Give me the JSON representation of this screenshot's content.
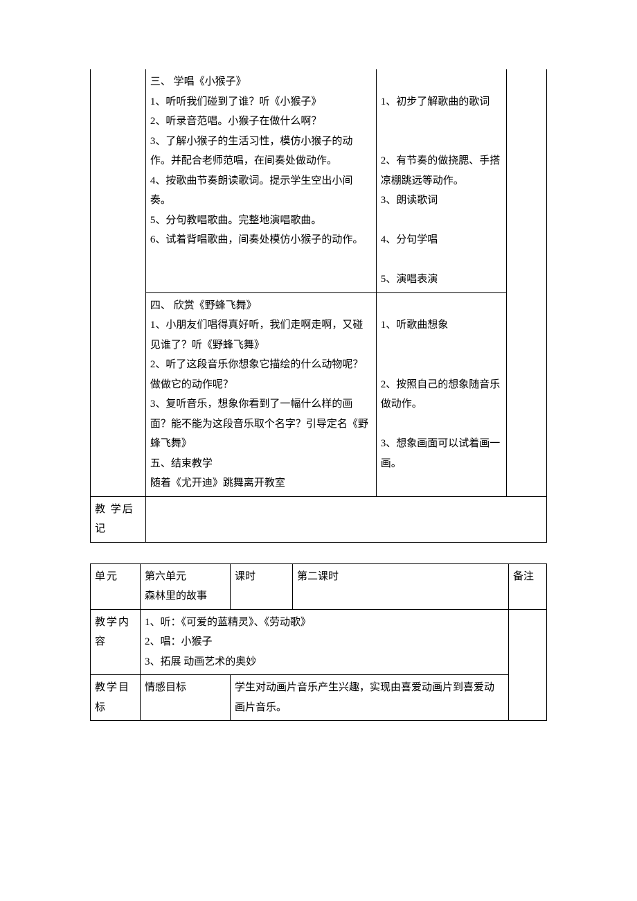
{
  "table1": {
    "row1": {
      "teacher": "三、   学唱《小猴子》\n1、听听我们碰到了谁？听《小猴子》\n2、听录音范唱。小猴子在做什么啊？\n3、了解小猴子的生活习性，模仿小猴子的动作。并配合老师范唱，在间奏处做动作。\n4、按歌曲节奏朗读歌词。提示学生空出小间奏。\n5、分句教唱歌曲。完整地演唱歌曲。\n6、试着背唱歌曲，间奏处模仿小猴子的动作。",
      "student": "\n1、初步了解歌曲的歌词\n\n\n2、有节奏的做挠腮、手搭凉棚跳远等动作。\n3、朗读歌词\n\n4、分句学唱\n\n5、演唱表演"
    },
    "row2": {
      "teacher": "四、   欣赏《野蜂飞舞》\n1、小朋友们唱得真好听，我们走啊走啊，又碰见谁了？听《野蜂飞舞》\n2、听了这段音乐你想象它描绘的什么动物呢？做做它的动作呢？\n3、复听音乐，想象你看到了一幅什么样的画面？能不能为这段音乐取个名字？引导定名《野蜂飞舞》\n五、结束教学\n随着《尤开迪》跳舞离开教室",
      "student": "\n1、听歌曲想象\n\n\n2、按照自己的想象随音乐做动作。\n\n3、想象画面可以试着画一画。"
    },
    "noteLabel": "教  学后记"
  },
  "table2": {
    "unit": {
      "label": "单元",
      "value": "第六单元\n森林里的故事",
      "periodLabel": "课时",
      "periodValue": "第二课时",
      "remarkLabel": "备注"
    },
    "content": {
      "label": "教学内容",
      "value": "1、听：《可爱的蓝精灵》、《劳动歌》\n2、唱：小猴子\n3、拓展 动画艺术的奥妙"
    },
    "goal": {
      "label": "教学目标",
      "emotionLabel": "情感目标",
      "emotionValue": "学生对动画片音乐产生兴趣，实现由喜爱动画片到喜爱动画片音乐。"
    }
  }
}
